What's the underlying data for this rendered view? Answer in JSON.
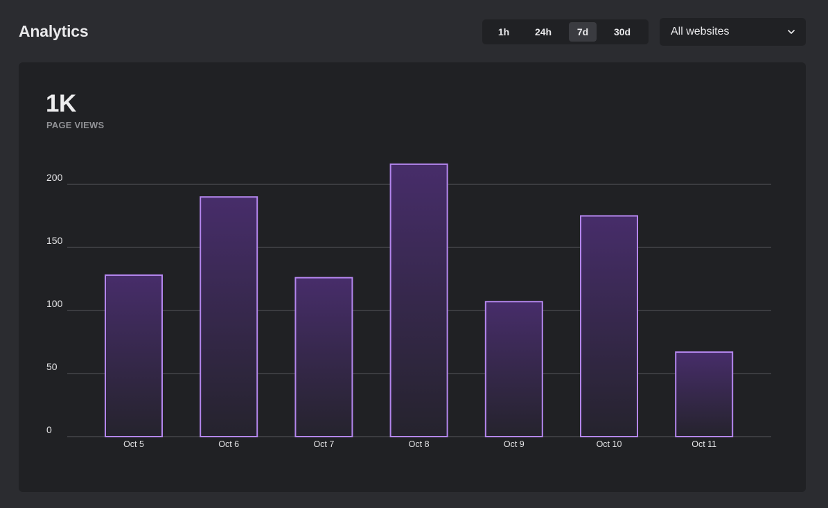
{
  "header": {
    "title": "Analytics"
  },
  "time_range": {
    "options": [
      "1h",
      "24h",
      "7d",
      "30d"
    ],
    "selected": "7d"
  },
  "website_select": {
    "value": "All websites",
    "icon": "chevron-down-icon"
  },
  "metric": {
    "value": "1K",
    "label": "PAGE VIEWS"
  },
  "colors": {
    "page_bg": "#2b2c30",
    "card_bg": "#202124",
    "bar_stroke": "#b486ee",
    "bar_fill_top": "#472d6a",
    "bar_fill_bottom": "#25232d",
    "grid": "#56575c"
  },
  "chart_data": {
    "type": "bar",
    "categories": [
      "Oct 5",
      "Oct 6",
      "Oct 7",
      "Oct 8",
      "Oct 9",
      "Oct 10",
      "Oct 11"
    ],
    "values": [
      128,
      190,
      126,
      216,
      107,
      175,
      67
    ],
    "ylim": [
      0,
      200
    ],
    "yticks": [
      0,
      50,
      100,
      150,
      200
    ],
    "grid": true,
    "legend": "none"
  }
}
